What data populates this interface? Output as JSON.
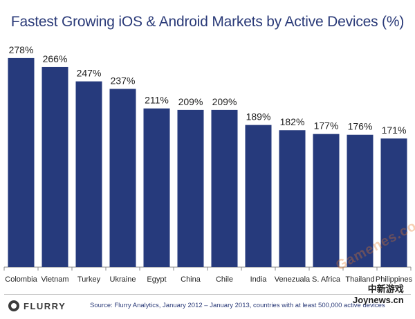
{
  "chart_data": {
    "type": "bar",
    "title": "Fastest Growing iOS & Android Markets by Active Devices (%)",
    "categories": [
      "Colombia",
      "Vietnam",
      "Turkey",
      "Ukraine",
      "Egypt",
      "China",
      "Chile",
      "India",
      "Venezuala",
      "S. Africa",
      "Thailand",
      "Philippines"
    ],
    "values": [
      278,
      266,
      247,
      237,
      211,
      209,
      209,
      189,
      182,
      177,
      176,
      171
    ],
    "value_labels": [
      "278%",
      "266%",
      "247%",
      "237%",
      "211%",
      "209%",
      "209%",
      "189%",
      "182%",
      "177%",
      "176%",
      "171%"
    ],
    "unit": "%",
    "ylim": [
      0,
      300
    ],
    "grid": false,
    "legend": "none",
    "bar_color": "#263a7c"
  },
  "footer": {
    "logo_text": "FLURRY",
    "source": "Source: Flurry Analytics, January 2012 – January 2013, countries with at least 500,000 active devices"
  },
  "watermarks": {
    "site": "Gamenes.com",
    "cn_text": "中新游戏",
    "cn_site": "Joynews.cn"
  },
  "colors": {
    "title": "#2a3a78",
    "bar": "#263a7c",
    "axis": "#888888"
  }
}
